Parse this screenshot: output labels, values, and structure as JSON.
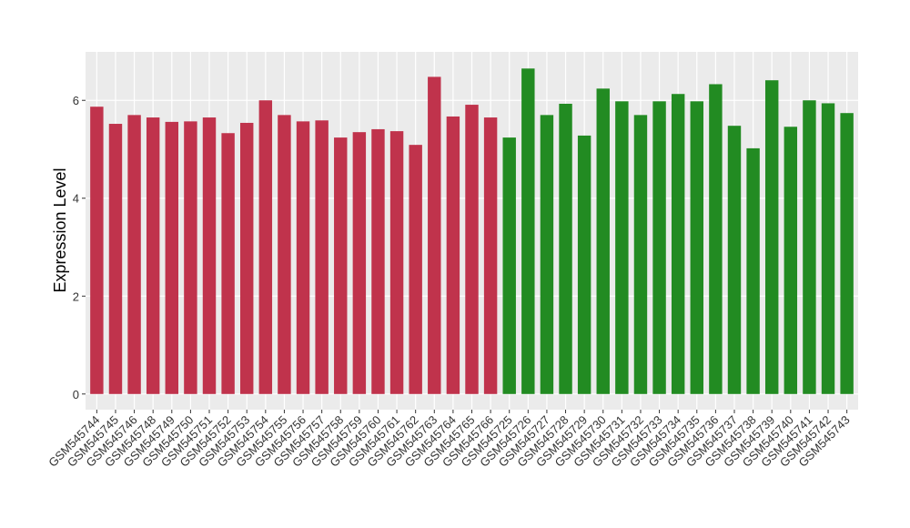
{
  "chart_data": {
    "type": "bar",
    "y_label": "Expression Level",
    "categories": [
      "GSM545744",
      "GSM545745",
      "GSM545746",
      "GSM545748",
      "GSM545749",
      "GSM545750",
      "GSM545751",
      "GSM545752",
      "GSM545753",
      "GSM545754",
      "GSM545755",
      "GSM545756",
      "GSM545757",
      "GSM545758",
      "GSM545759",
      "GSM545760",
      "GSM545761",
      "GSM545762",
      "GSM545763",
      "GSM545764",
      "GSM545765",
      "GSM545766",
      "GSM545725",
      "GSM545726",
      "GSM545727",
      "GSM545728",
      "GSM545729",
      "GSM545730",
      "GSM545731",
      "GSM545732",
      "GSM545733",
      "GSM545734",
      "GSM545735",
      "GSM545736",
      "GSM545737",
      "GSM545738",
      "GSM545739",
      "GSM545740",
      "GSM545741",
      "GSM545742",
      "GSM545743"
    ],
    "values": [
      5.87,
      5.52,
      5.7,
      5.65,
      5.56,
      5.57,
      5.65,
      5.33,
      5.54,
      6.0,
      5.7,
      5.57,
      5.59,
      5.24,
      5.35,
      5.41,
      5.37,
      5.09,
      6.48,
      5.67,
      5.91,
      5.65,
      5.24,
      6.65,
      5.7,
      5.93,
      5.28,
      6.24,
      5.98,
      5.7,
      5.98,
      6.13,
      5.98,
      6.33,
      5.48,
      5.02,
      6.41,
      5.46,
      6.0,
      5.94,
      5.74
    ],
    "colors": [
      "#c0334c",
      "#c0334c",
      "#c0334c",
      "#c0334c",
      "#c0334c",
      "#c0334c",
      "#c0334c",
      "#c0334c",
      "#c0334c",
      "#c0334c",
      "#c0334c",
      "#c0334c",
      "#c0334c",
      "#c0334c",
      "#c0334c",
      "#c0334c",
      "#c0334c",
      "#c0334c",
      "#c0334c",
      "#c0334c",
      "#c0334c",
      "#c0334c",
      "#228b22",
      "#228b22",
      "#228b22",
      "#228b22",
      "#228b22",
      "#228b22",
      "#228b22",
      "#228b22",
      "#228b22",
      "#228b22",
      "#228b22",
      "#228b22",
      "#228b22",
      "#228b22",
      "#228b22",
      "#228b22",
      "#228b22",
      "#228b22",
      "#228b22"
    ],
    "ylim": [
      -0.32,
      6.99
    ],
    "yticks": [
      0,
      2,
      4,
      6
    ],
    "grid": true
  }
}
